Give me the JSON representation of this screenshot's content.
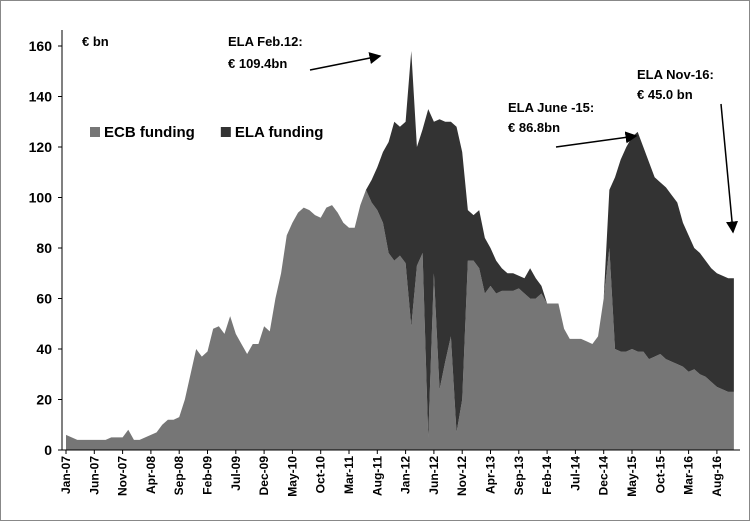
{
  "chart_data": {
    "type": "stacked-area",
    "unit_label": "€ bn",
    "categories": [
      "Jan-07",
      null,
      null,
      null,
      null,
      "Jun-07",
      null,
      null,
      null,
      null,
      "Nov-07",
      null,
      null,
      null,
      null,
      "Apr-08",
      null,
      null,
      null,
      null,
      "Sep-08",
      null,
      null,
      null,
      null,
      "Feb-09",
      null,
      null,
      null,
      null,
      "Jul-09",
      null,
      null,
      null,
      null,
      "Dec-09",
      null,
      null,
      null,
      null,
      "May-10",
      null,
      null,
      null,
      null,
      "Oct-10",
      null,
      null,
      null,
      null,
      "Mar-11",
      null,
      null,
      null,
      null,
      "Aug-11",
      null,
      null,
      null,
      null,
      "Jan-12",
      null,
      null,
      null,
      null,
      "Jun-12",
      null,
      null,
      null,
      null,
      "Nov-12",
      null,
      null,
      null,
      null,
      "Apr-13",
      null,
      null,
      null,
      null,
      "Sep-13",
      null,
      null,
      null,
      null,
      "Feb-14",
      null,
      null,
      null,
      null,
      "Jul-14",
      null,
      null,
      null,
      null,
      "Dec-14",
      null,
      null,
      null,
      null,
      "May-15",
      null,
      null,
      null,
      null,
      "Oct-15",
      null,
      null,
      null,
      null,
      "Mar-16",
      null,
      null,
      null,
      null,
      "Aug-16",
      null,
      null,
      null
    ],
    "series": [
      {
        "name": "ECB funding",
        "color": "#767676",
        "values": [
          6,
          5,
          4,
          4,
          4,
          4,
          4,
          4,
          5,
          5,
          5,
          8,
          4,
          4,
          5,
          6,
          7,
          10,
          12,
          12,
          13,
          20,
          30,
          40,
          37,
          39,
          48,
          49,
          46,
          53,
          46,
          42,
          38,
          42,
          42,
          49,
          47,
          60,
          70,
          85,
          90,
          94,
          96,
          95,
          93,
          92,
          96,
          97,
          94,
          90,
          88,
          88,
          97,
          103,
          98,
          95,
          90,
          78,
          75,
          77,
          74,
          49,
          73,
          78,
          5,
          70,
          24,
          35,
          45,
          7,
          20,
          75,
          75,
          72,
          62,
          65,
          62,
          63,
          63,
          63,
          64,
          62,
          60,
          60,
          62,
          58,
          58,
          58,
          48,
          44,
          44,
          44,
          43,
          42,
          45,
          60,
          80,
          40,
          39,
          39,
          40,
          39,
          39,
          36,
          37,
          38,
          36,
          35,
          34,
          33,
          31,
          32,
          30,
          29,
          27,
          25,
          24,
          23,
          23
        ]
      },
      {
        "name": "ELA funding",
        "color": "#333333",
        "values": [
          0,
          0,
          0,
          0,
          0,
          0,
          0,
          0,
          0,
          0,
          0,
          0,
          0,
          0,
          0,
          0,
          0,
          0,
          0,
          0,
          0,
          0,
          0,
          0,
          0,
          0,
          0,
          0,
          0,
          0,
          0,
          0,
          0,
          0,
          0,
          0,
          0,
          0,
          0,
          0,
          0,
          0,
          0,
          0,
          0,
          0,
          0,
          0,
          0,
          0,
          0,
          0,
          0,
          0,
          9,
          17,
          28,
          44,
          55,
          51,
          56,
          109,
          47,
          49,
          130,
          60,
          107,
          95,
          85,
          121,
          98,
          20,
          18,
          23,
          22,
          15,
          13,
          9,
          7,
          7,
          5,
          6,
          12,
          8,
          3,
          0,
          0,
          0,
          0,
          0,
          0,
          0,
          0,
          0,
          0,
          0,
          23,
          68,
          76,
          81,
          84,
          87,
          81,
          78,
          71,
          68,
          68,
          66,
          64,
          57,
          54,
          48,
          48,
          46,
          45,
          45,
          45,
          45,
          45
        ]
      }
    ],
    "ylim": [
      0,
      165
    ],
    "yticks": [
      0,
      20,
      40,
      60,
      80,
      100,
      120,
      140,
      160
    ],
    "legend": "left",
    "annotations": [
      {
        "lines": [
          "ELA Feb.12:",
          "€ 109.4bn"
        ]
      },
      {
        "lines": [
          "ELA June -15:",
          "€ 86.8bn"
        ]
      },
      {
        "lines": [
          "ELA Nov-16:",
          "€ 45.0 bn"
        ]
      }
    ]
  }
}
